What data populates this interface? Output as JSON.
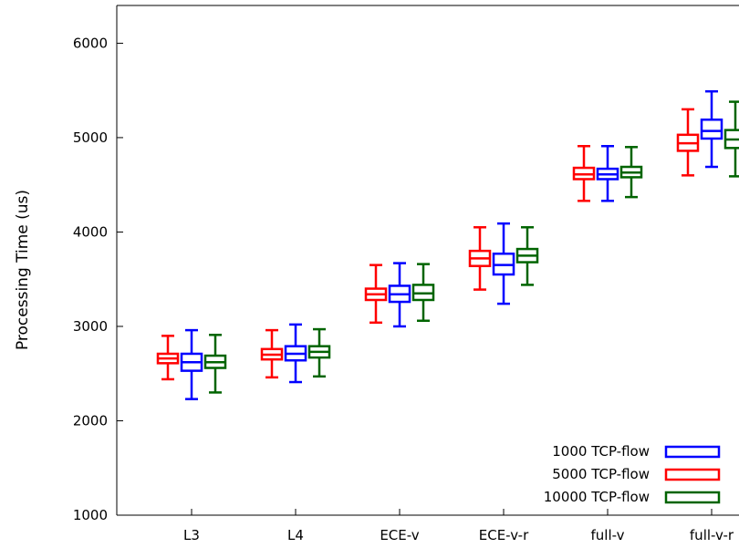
{
  "chart_data": {
    "type": "boxplot",
    "title": "",
    "xlabel": "",
    "ylabel": "Processing Time (us)",
    "ylim": [
      1000,
      6400
    ],
    "yticks": [
      1000,
      2000,
      3000,
      4000,
      5000,
      6000
    ],
    "categories": [
      "L3",
      "L4",
      "ECE-v",
      "ECE-v-r",
      "full-v",
      "full-v-r"
    ],
    "legend_position": "bottom-right",
    "grid": false,
    "series": [
      {
        "name": "5000 TCP-flow",
        "color": "#ff0000",
        "boxes": [
          {
            "min": 2440,
            "q1": 2610,
            "median": 2660,
            "q3": 2710,
            "max": 2900
          },
          {
            "min": 2460,
            "q1": 2650,
            "median": 2700,
            "q3": 2760,
            "max": 2960
          },
          {
            "min": 3040,
            "q1": 3280,
            "median": 3340,
            "q3": 3400,
            "max": 3650
          },
          {
            "min": 3390,
            "q1": 3640,
            "median": 3720,
            "q3": 3800,
            "max": 4050
          },
          {
            "min": 4330,
            "q1": 4560,
            "median": 4610,
            "q3": 4680,
            "max": 4910
          },
          {
            "min": 4600,
            "q1": 4860,
            "median": 4940,
            "q3": 5030,
            "max": 5300
          }
        ]
      },
      {
        "name": "1000 TCP-flow",
        "color": "#0000ff",
        "boxes": [
          {
            "min": 2230,
            "q1": 2530,
            "median": 2620,
            "q3": 2710,
            "max": 2960
          },
          {
            "min": 2410,
            "q1": 2640,
            "median": 2710,
            "q3": 2790,
            "max": 3020
          },
          {
            "min": 3000,
            "q1": 3260,
            "median": 3340,
            "q3": 3430,
            "max": 3670
          },
          {
            "min": 3240,
            "q1": 3550,
            "median": 3650,
            "q3": 3770,
            "max": 4090
          },
          {
            "min": 4330,
            "q1": 4560,
            "median": 4610,
            "q3": 4670,
            "max": 4910
          },
          {
            "min": 4690,
            "q1": 4990,
            "median": 5070,
            "q3": 5190,
            "max": 5490
          }
        ]
      },
      {
        "name": "10000 TCP-flow",
        "color": "#006400",
        "boxes": [
          {
            "min": 2300,
            "q1": 2560,
            "median": 2620,
            "q3": 2690,
            "max": 2910
          },
          {
            "min": 2470,
            "q1": 2670,
            "median": 2730,
            "q3": 2790,
            "max": 2970
          },
          {
            "min": 3060,
            "q1": 3280,
            "median": 3350,
            "q3": 3440,
            "max": 3660
          },
          {
            "min": 3440,
            "q1": 3680,
            "median": 3750,
            "q3": 3820,
            "max": 4050
          },
          {
            "min": 4370,
            "q1": 4580,
            "median": 4630,
            "q3": 4690,
            "max": 4900
          },
          {
            "min": 4590,
            "q1": 4890,
            "median": 4980,
            "q3": 5080,
            "max": 5380
          }
        ]
      }
    ],
    "legend_order": [
      "1000 TCP-flow",
      "5000 TCP-flow",
      "10000 TCP-flow"
    ]
  }
}
